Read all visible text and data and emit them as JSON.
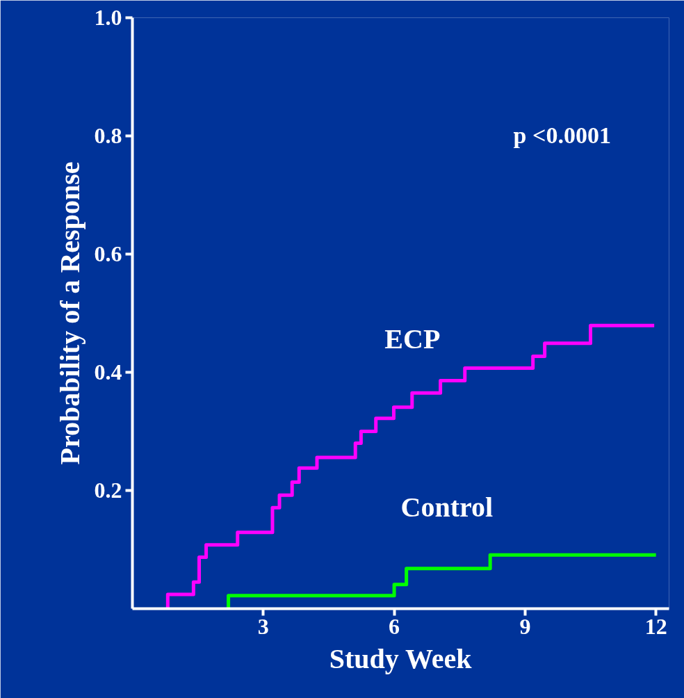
{
  "chart_data": {
    "type": "step",
    "xlabel": "Study Week",
    "ylabel": "Probability of a Response",
    "xlim": [
      0,
      12.3
    ],
    "ylim": [
      0,
      1.0
    ],
    "xticks": [
      3,
      6,
      9,
      12
    ],
    "yticks": [
      0.2,
      0.4,
      0.6,
      0.8,
      {
        "value": 1.0,
        "label": "1.0"
      }
    ],
    "grid": false,
    "legend": false,
    "annotations": [
      "p <0.0001"
    ],
    "series": [
      {
        "name": "ECP",
        "color": "#ff00ff",
        "x": [
          0.81,
          0.81,
          1.4,
          1.53,
          1.69,
          2.41,
          3.21,
          3.37,
          3.66,
          3.82,
          4.23,
          5.11,
          5.24,
          5.58,
          5.99,
          6.41,
          7.06,
          7.62,
          9.18,
          9.45,
          10.5,
          11.96
        ],
        "values": [
          0,
          0.024,
          0.045,
          0.087,
          0.108,
          0.129,
          0.171,
          0.192,
          0.214,
          0.238,
          0.256,
          0.28,
          0.3,
          0.322,
          0.341,
          0.365,
          0.386,
          0.407,
          0.427,
          0.449,
          0.479,
          0.479
        ]
      },
      {
        "name": "Control",
        "color": "#00ff00",
        "x": [
          2.2,
          2.2,
          6.0,
          6.28,
          8.2,
          12.0
        ],
        "values": [
          0,
          0.022,
          0.041,
          0.068,
          0.091,
          0.091
        ]
      }
    ]
  }
}
